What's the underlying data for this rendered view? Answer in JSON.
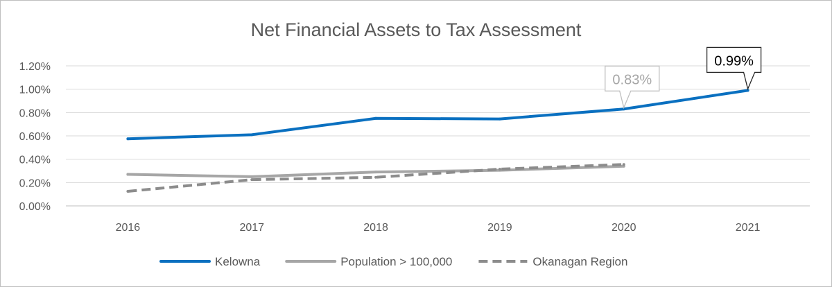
{
  "chart_data": {
    "type": "line",
    "title": "Net Financial Assets to Tax Assessment",
    "xlabel": "",
    "ylabel": "",
    "categories": [
      "2016",
      "2017",
      "2018",
      "2019",
      "2020",
      "2021"
    ],
    "y_ticks": [
      "0.00%",
      "0.20%",
      "0.40%",
      "0.60%",
      "0.80%",
      "1.00%",
      "1.20%"
    ],
    "ylim": [
      0,
      1.2
    ],
    "grid": true,
    "legend_position": "bottom",
    "series": [
      {
        "name": "Kelowna",
        "values": [
          0.575,
          0.61,
          0.75,
          0.745,
          0.83,
          0.99
        ],
        "color": "#0a70c0",
        "dash": "solid"
      },
      {
        "name": "Population > 100,000",
        "values": [
          0.27,
          0.25,
          0.29,
          0.305,
          0.34,
          null
        ],
        "color": "#a6a6a6",
        "dash": "solid"
      },
      {
        "name": "Okanagan Region",
        "values": [
          0.125,
          0.225,
          0.245,
          0.315,
          0.355,
          null
        ],
        "color": "#8c8c8c",
        "dash": "dashed"
      }
    ],
    "annotations": [
      {
        "series": "Kelowna",
        "category": "2020",
        "text": "0.83%",
        "style": "grey"
      },
      {
        "series": "Kelowna",
        "category": "2021",
        "text": "0.99%",
        "style": "black"
      }
    ]
  }
}
